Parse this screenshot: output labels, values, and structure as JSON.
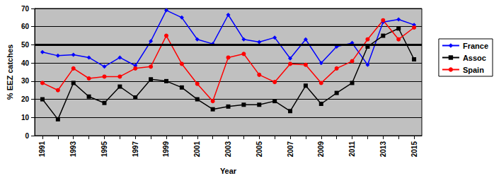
{
  "chart_data": {
    "type": "line",
    "x_label": "Year",
    "y_label": "% EEZ catches",
    "categories": [
      "1991",
      null,
      "1993",
      null,
      "1995",
      null,
      "1997",
      null,
      "1999",
      null,
      "2001",
      null,
      "2003",
      null,
      "2005",
      null,
      "2007",
      null,
      "2009",
      null,
      "2011",
      null,
      "2013",
      null,
      "2015"
    ],
    "series": [
      {
        "name": "France",
        "color": "#0000ff",
        "marker": "diamond",
        "values": [
          46,
          44,
          44.5,
          43,
          38,
          43,
          38.5,
          52,
          69,
          65,
          53,
          50.5,
          66.5,
          53,
          51.5,
          54,
          42.5,
          53,
          40,
          49,
          51,
          39,
          62.5,
          64,
          61
        ]
      },
      {
        "name": "Assoc",
        "color": "#000000",
        "marker": "square",
        "values": [
          20,
          9,
          29,
          21.5,
          18,
          27,
          21,
          31,
          30,
          26.5,
          20,
          14.5,
          16,
          17,
          17,
          19,
          13.5,
          27.5,
          17.5,
          23.5,
          29,
          49,
          55,
          59,
          42
        ]
      },
      {
        "name": "Spain",
        "color": "#ff0000",
        "marker": "circle",
        "values": [
          29,
          25,
          37,
          31.5,
          32.5,
          32.5,
          37,
          38,
          55,
          39.5,
          28.5,
          19,
          43,
          45,
          33.5,
          29.5,
          39.5,
          39,
          29,
          37,
          41,
          53,
          63.5,
          53,
          59.5
        ]
      }
    ],
    "hline": 50,
    "ylim": [
      0,
      70
    ],
    "yticks": [
      0,
      10,
      20,
      30,
      40,
      50,
      60,
      70
    ],
    "grid": true,
    "legend": "right"
  }
}
